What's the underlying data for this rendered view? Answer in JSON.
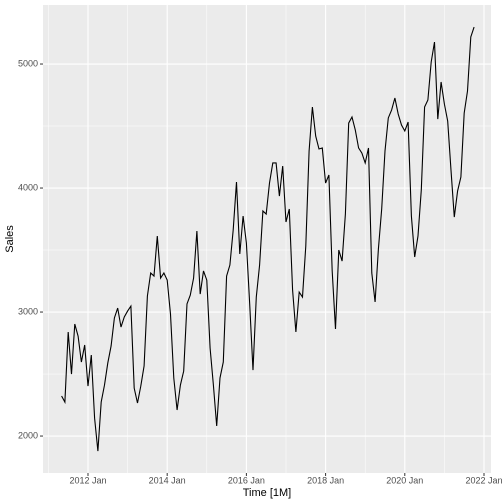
{
  "chart_data": {
    "type": "line",
    "x_label": "Time [1M]",
    "y_label": "Sales",
    "x": [
      "2011 May",
      "2011 Jun",
      "2011 Jul",
      "2011 Aug",
      "2011 Sep",
      "2011 Oct",
      "2011 Nov",
      "2011 Dec",
      "2012 Jan",
      "2012 Feb",
      "2012 Mar",
      "2012 Apr",
      "2012 May",
      "2012 Jun",
      "2012 Jul",
      "2012 Aug",
      "2012 Sep",
      "2012 Oct",
      "2012 Nov",
      "2012 Dec",
      "2013 Jan",
      "2013 Feb",
      "2013 Mar",
      "2013 Apr",
      "2013 May",
      "2013 Jun",
      "2013 Jul",
      "2013 Aug",
      "2013 Sep",
      "2013 Oct",
      "2013 Nov",
      "2013 Dec",
      "2014 Jan",
      "2014 Feb",
      "2014 Mar",
      "2014 Apr",
      "2014 May",
      "2014 Jun",
      "2014 Jul",
      "2014 Aug",
      "2014 Sep",
      "2014 Oct",
      "2014 Nov",
      "2014 Dec",
      "2015 Jan",
      "2015 Feb",
      "2015 Mar",
      "2015 Apr",
      "2015 May",
      "2015 Jun",
      "2015 Jul",
      "2015 Aug",
      "2015 Sep",
      "2015 Oct",
      "2015 Nov",
      "2015 Dec",
      "2016 Jan",
      "2016 Feb",
      "2016 Mar",
      "2016 Apr",
      "2016 May",
      "2016 Jun",
      "2016 Jul",
      "2016 Aug",
      "2016 Sep",
      "2016 Oct",
      "2016 Nov",
      "2016 Dec",
      "2017 Jan",
      "2017 Feb",
      "2017 Mar",
      "2017 Apr",
      "2017 May",
      "2017 Jun",
      "2017 Jul",
      "2017 Aug",
      "2017 Sep",
      "2017 Oct",
      "2017 Nov",
      "2017 Dec",
      "2018 Jan",
      "2018 Feb",
      "2018 Mar",
      "2018 Apr",
      "2018 May",
      "2018 Jun",
      "2018 Jul",
      "2018 Aug",
      "2018 Sep",
      "2018 Oct",
      "2018 Nov",
      "2018 Dec",
      "2019 Jan",
      "2019 Feb",
      "2019 Mar",
      "2019 Apr",
      "2019 May",
      "2019 Jun",
      "2019 Jul",
      "2019 Aug",
      "2019 Sep",
      "2019 Oct",
      "2019 Nov",
      "2019 Dec",
      "2020 Jan",
      "2020 Feb",
      "2020 Mar",
      "2020 Apr",
      "2020 May",
      "2020 Jun",
      "2020 Jul",
      "2020 Aug",
      "2020 Sep",
      "2020 Oct",
      "2020 Nov",
      "2020 Dec",
      "2021 Jan",
      "2021 Feb",
      "2021 Mar",
      "2021 Apr",
      "2021 May",
      "2021 Jun",
      "2021 Jul",
      "2021 Aug",
      "2021 Sep",
      "2021 Oct"
    ],
    "values": [
      2323,
      2274,
      2839,
      2500,
      2903,
      2806,
      2597,
      2734,
      2403,
      2653,
      2145,
      1879,
      2274,
      2411,
      2589,
      2726,
      2952,
      3032,
      2879,
      2960,
      3008,
      3048,
      2387,
      2266,
      2403,
      2565,
      3129,
      3315,
      3290,
      3613,
      3274,
      3315,
      3258,
      2984,
      2468,
      2210,
      2411,
      2524,
      3065,
      3137,
      3274,
      3653,
      3145,
      3331,
      3258,
      2710,
      2411,
      2081,
      2468,
      2597,
      3290,
      3379,
      3661,
      4048,
      3468,
      3774,
      3556,
      3065,
      2532,
      3121,
      3379,
      3815,
      3790,
      4040,
      4202,
      4202,
      3935,
      4177,
      3726,
      3831,
      3177,
      2839,
      3161,
      3121,
      3532,
      4298,
      4653,
      4419,
      4315,
      4323,
      4040,
      4105,
      3331,
      2863,
      3500,
      3411,
      3790,
      4524,
      4573,
      4468,
      4323,
      4282,
      4202,
      4323,
      3315,
      3081,
      3508,
      3831,
      4298,
      4565,
      4629,
      4726,
      4597,
      4508,
      4460,
      4532,
      3774,
      3444,
      3613,
      3984,
      4653,
      4710,
      5016,
      5177,
      4556,
      4855,
      4677,
      4540,
      4145,
      3766,
      3976,
      4089,
      4605,
      4782,
      5218,
      5298
    ],
    "color": "#000000",
    "xlim": [
      2010.864,
      2022.177
    ],
    "xticks": [
      {
        "value": 2012,
        "label": "2012 Jan"
      },
      {
        "value": 2014,
        "label": "2014 Jan"
      },
      {
        "value": 2016,
        "label": "2016 Jan"
      },
      {
        "value": 2018,
        "label": "2018 Jan"
      },
      {
        "value": 2020,
        "label": "2020 Jan"
      },
      {
        "value": 2022,
        "label": "2022 Jan"
      }
    ],
    "xminor": [
      2011,
      2013,
      2015,
      2017,
      2019,
      2021
    ],
    "ylim": [
      1702,
      5476
    ],
    "yticks": [
      2000,
      3000,
      4000,
      5000
    ],
    "yminor": [
      2500,
      3500,
      4500
    ],
    "grid": true
  }
}
